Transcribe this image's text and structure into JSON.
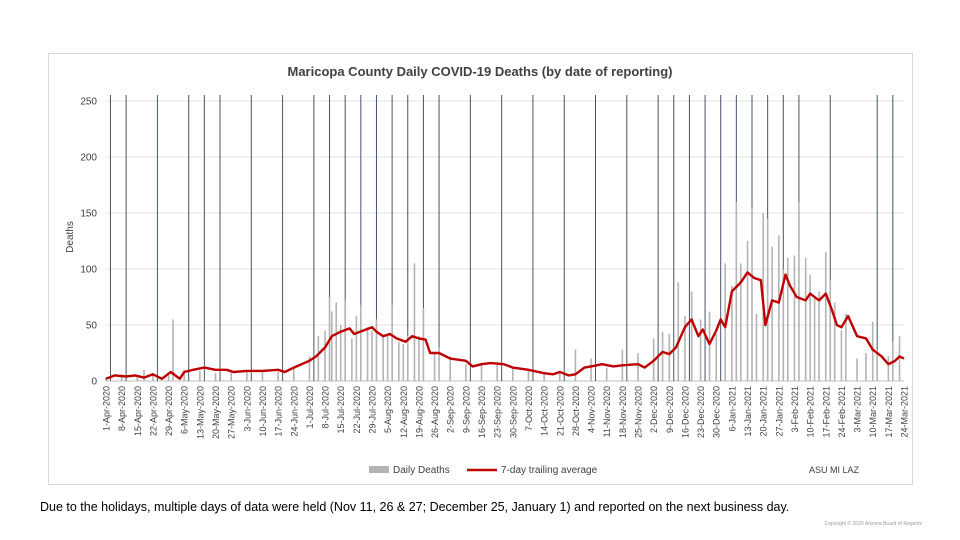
{
  "chart_data": {
    "type": "bar",
    "title": "Maricopa County Daily COVID-19 Deaths (by date of reporting)",
    "xlabel": "",
    "ylabel": "Deaths",
    "ylim": [
      0,
      250
    ],
    "yticks": [
      0,
      50,
      100,
      150,
      200,
      250
    ],
    "grid": true,
    "legend_position": "bottom",
    "x_start": "2020-04-01",
    "x_end": "2021-03-24",
    "x_ticks": [
      "1-Apr-2020",
      "8-Apr-2020",
      "15-Apr-2020",
      "22-Apr-2020",
      "29-Apr-2020",
      "6-May-2020",
      "13-May-2020",
      "20-May-2020",
      "27-May-2020",
      "3-Jun-2020",
      "10-Jun-2020",
      "17-Jun-2020",
      "24-Jun-2020",
      "1-Jul-2020",
      "8-Jul-2020",
      "15-Jul-2020",
      "22-Jul-2020",
      "29-Jul-2020",
      "5-Aug-2020",
      "12-Aug-2020",
      "19-Aug-2020",
      "26-Aug-2020",
      "2-Sep-2020",
      "9-Sep-2020",
      "16-Sep-2020",
      "23-Sep-2020",
      "30-Sep-2020",
      "7-Oct-2020",
      "14-Oct-2020",
      "21-Oct-2020",
      "28-Oct-2020",
      "4-Nov-2020",
      "11-Nov-2020",
      "18-Nov-2020",
      "25-Nov-2020",
      "2-Dec-2020",
      "9-Dec-2020",
      "16-Dec-2020",
      "23-Dec-2020",
      "30-Dec-2020",
      "6-Jan-2021",
      "13-Jan-2021",
      "20-Jan-2021",
      "27-Jan-2021",
      "3-Feb-2021",
      "10-Feb-2021",
      "17-Feb-2021",
      "24-Feb-2021",
      "3-Mar-2021",
      "10-Mar-2021",
      "17-Mar-2021",
      "24-Mar-2021"
    ],
    "reporting_dates": [
      "2020-04-03",
      "2020-04-10",
      "2020-04-24",
      "2020-05-08",
      "2020-05-15",
      "2020-05-22",
      "2020-06-05",
      "2020-06-19",
      "2020-07-03",
      "2020-07-10",
      "2020-07-17",
      "2020-07-24",
      "2020-07-31",
      "2020-08-07",
      "2020-08-14",
      "2020-08-21",
      "2020-08-28",
      "2020-09-11",
      "2020-09-25",
      "2020-10-09",
      "2020-10-23",
      "2020-11-06",
      "2020-11-20",
      "2020-12-04",
      "2020-12-11",
      "2020-12-18",
      "2020-12-25",
      "2021-01-01",
      "2021-01-08",
      "2021-01-15",
      "2021-01-22",
      "2021-01-29",
      "2021-02-05",
      "2021-02-19",
      "2021-03-12",
      "2021-03-19"
    ],
    "series": [
      {
        "name": "Daily Deaths",
        "type": "bar",
        "color": "#b4b4b4",
        "points": [
          [
            "2020-04-01",
            3
          ],
          [
            "2020-04-08",
            6
          ],
          [
            "2020-04-15",
            5
          ],
          [
            "2020-04-18",
            10
          ],
          [
            "2020-04-22",
            7
          ],
          [
            "2020-04-29",
            5
          ],
          [
            "2020-05-01",
            55
          ],
          [
            "2020-05-06",
            10
          ],
          [
            "2020-05-13",
            9
          ],
          [
            "2020-05-20",
            7
          ],
          [
            "2020-05-27",
            10
          ],
          [
            "2020-06-03",
            9
          ],
          [
            "2020-06-10",
            8
          ],
          [
            "2020-06-17",
            8
          ],
          [
            "2020-06-24",
            12
          ],
          [
            "2020-07-01",
            22
          ],
          [
            "2020-07-05",
            40
          ],
          [
            "2020-07-08",
            45
          ],
          [
            "2020-07-10",
            75
          ],
          [
            "2020-07-11",
            62
          ],
          [
            "2020-07-13",
            70
          ],
          [
            "2020-07-15",
            50
          ],
          [
            "2020-07-17",
            72
          ],
          [
            "2020-07-20",
            38
          ],
          [
            "2020-07-22",
            58
          ],
          [
            "2020-07-24",
            68
          ],
          [
            "2020-07-27",
            48
          ],
          [
            "2020-07-29",
            45
          ],
          [
            "2020-07-31",
            55
          ],
          [
            "2020-08-03",
            40
          ],
          [
            "2020-08-05",
            42
          ],
          [
            "2020-08-07",
            68
          ],
          [
            "2020-08-10",
            35
          ],
          [
            "2020-08-12",
            33
          ],
          [
            "2020-08-14",
            40
          ],
          [
            "2020-08-17",
            105
          ],
          [
            "2020-08-19",
            40
          ],
          [
            "2020-08-21",
            65
          ],
          [
            "2020-08-26",
            25
          ],
          [
            "2020-08-28",
            30
          ],
          [
            "2020-09-02",
            22
          ],
          [
            "2020-09-09",
            15
          ],
          [
            "2020-09-16",
            15
          ],
          [
            "2020-09-23",
            17
          ],
          [
            "2020-09-30",
            12
          ],
          [
            "2020-10-07",
            10
          ],
          [
            "2020-10-14",
            7
          ],
          [
            "2020-10-21",
            8
          ],
          [
            "2020-10-28",
            28
          ],
          [
            "2020-11-04",
            20
          ],
          [
            "2020-11-11",
            12
          ],
          [
            "2020-11-18",
            28
          ],
          [
            "2020-11-25",
            25
          ],
          [
            "2020-12-02",
            38
          ],
          [
            "2020-12-06",
            44
          ],
          [
            "2020-12-09",
            42
          ],
          [
            "2020-12-13",
            88
          ],
          [
            "2020-12-16",
            58
          ],
          [
            "2020-12-19",
            80
          ],
          [
            "2020-12-23",
            55
          ],
          [
            "2020-12-27",
            62
          ],
          [
            "2020-12-30",
            42
          ],
          [
            "2021-01-03",
            105
          ],
          [
            "2021-01-06",
            85
          ],
          [
            "2021-01-08",
            160
          ],
          [
            "2021-01-10",
            105
          ],
          [
            "2021-01-13",
            125
          ],
          [
            "2021-01-15",
            155
          ],
          [
            "2021-01-17",
            60
          ],
          [
            "2021-01-20",
            150
          ],
          [
            "2021-01-22",
            145
          ],
          [
            "2021-01-24",
            120
          ],
          [
            "2021-01-27",
            130
          ],
          [
            "2021-01-29",
            100
          ],
          [
            "2021-01-31",
            110
          ],
          [
            "2021-02-03",
            112
          ],
          [
            "2021-02-05",
            160
          ],
          [
            "2021-02-08",
            110
          ],
          [
            "2021-02-10",
            95
          ],
          [
            "2021-02-12",
            75
          ],
          [
            "2021-02-14",
            80
          ],
          [
            "2021-02-17",
            115
          ],
          [
            "2021-02-19",
            90
          ],
          [
            "2021-02-21",
            70
          ],
          [
            "2021-02-24",
            45
          ],
          [
            "2021-02-26",
            60
          ],
          [
            "2021-03-03",
            20
          ],
          [
            "2021-03-07",
            25
          ],
          [
            "2021-03-10",
            53
          ],
          [
            "2021-03-12",
            28
          ],
          [
            "2021-03-17",
            22
          ],
          [
            "2021-03-19",
            35
          ],
          [
            "2021-03-22",
            40
          ]
        ]
      },
      {
        "name": "7-day trailing average",
        "type": "line",
        "color": "#c00000",
        "points": [
          [
            "2020-04-01",
            2
          ],
          [
            "2020-04-05",
            5
          ],
          [
            "2020-04-10",
            4
          ],
          [
            "2020-04-14",
            5
          ],
          [
            "2020-04-18",
            3
          ],
          [
            "2020-04-22",
            6
          ],
          [
            "2020-04-26",
            2
          ],
          [
            "2020-04-30",
            8
          ],
          [
            "2020-05-04",
            2
          ],
          [
            "2020-05-06",
            8
          ],
          [
            "2020-05-10",
            10
          ],
          [
            "2020-05-15",
            12
          ],
          [
            "2020-05-20",
            10
          ],
          [
            "2020-05-25",
            10
          ],
          [
            "2020-05-28",
            8
          ],
          [
            "2020-06-03",
            9
          ],
          [
            "2020-06-10",
            9
          ],
          [
            "2020-06-17",
            10
          ],
          [
            "2020-06-20",
            8
          ],
          [
            "2020-06-24",
            12
          ],
          [
            "2020-07-01",
            18
          ],
          [
            "2020-07-04",
            22
          ],
          [
            "2020-07-08",
            30
          ],
          [
            "2020-07-11",
            40
          ],
          [
            "2020-07-15",
            44
          ],
          [
            "2020-07-19",
            47
          ],
          [
            "2020-07-21",
            42
          ],
          [
            "2020-07-25",
            45
          ],
          [
            "2020-07-29",
            48
          ],
          [
            "2020-07-31",
            44
          ],
          [
            "2020-08-03",
            40
          ],
          [
            "2020-08-06",
            42
          ],
          [
            "2020-08-09",
            38
          ],
          [
            "2020-08-13",
            35
          ],
          [
            "2020-08-16",
            40
          ],
          [
            "2020-08-19",
            38
          ],
          [
            "2020-08-22",
            37
          ],
          [
            "2020-08-24",
            25
          ],
          [
            "2020-08-28",
            25
          ],
          [
            "2020-09-02",
            20
          ],
          [
            "2020-09-09",
            18
          ],
          [
            "2020-09-12",
            13
          ],
          [
            "2020-09-16",
            15
          ],
          [
            "2020-09-20",
            16
          ],
          [
            "2020-09-26",
            15
          ],
          [
            "2020-09-30",
            12
          ],
          [
            "2020-10-07",
            10
          ],
          [
            "2020-10-14",
            7
          ],
          [
            "2020-10-18",
            6
          ],
          [
            "2020-10-21",
            8
          ],
          [
            "2020-10-25",
            5
          ],
          [
            "2020-10-28",
            6
          ],
          [
            "2020-11-01",
            12
          ],
          [
            "2020-11-04",
            13
          ],
          [
            "2020-11-09",
            15
          ],
          [
            "2020-11-14",
            13
          ],
          [
            "2020-11-18",
            14
          ],
          [
            "2020-11-25",
            15
          ],
          [
            "2020-11-28",
            12
          ],
          [
            "2020-12-02",
            18
          ],
          [
            "2020-12-06",
            26
          ],
          [
            "2020-12-09",
            24
          ],
          [
            "2020-12-12",
            30
          ],
          [
            "2020-12-16",
            48
          ],
          [
            "2020-12-19",
            55
          ],
          [
            "2020-12-22",
            40
          ],
          [
            "2020-12-24",
            46
          ],
          [
            "2020-12-27",
            33
          ],
          [
            "2020-12-30",
            45
          ],
          [
            "2021-01-01",
            55
          ],
          [
            "2021-01-03",
            48
          ],
          [
            "2021-01-06",
            80
          ],
          [
            "2021-01-10",
            88
          ],
          [
            "2021-01-13",
            97
          ],
          [
            "2021-01-16",
            92
          ],
          [
            "2021-01-19",
            90
          ],
          [
            "2021-01-21",
            50
          ],
          [
            "2021-01-24",
            72
          ],
          [
            "2021-01-27",
            70
          ],
          [
            "2021-01-30",
            95
          ],
          [
            "2021-02-01",
            85
          ],
          [
            "2021-02-04",
            75
          ],
          [
            "2021-02-08",
            72
          ],
          [
            "2021-02-10",
            78
          ],
          [
            "2021-02-14",
            72
          ],
          [
            "2021-02-17",
            78
          ],
          [
            "2021-02-20",
            62
          ],
          [
            "2021-02-22",
            50
          ],
          [
            "2021-02-24",
            48
          ],
          [
            "2021-02-27",
            58
          ],
          [
            "2021-03-03",
            40
          ],
          [
            "2021-03-07",
            38
          ],
          [
            "2021-03-10",
            28
          ],
          [
            "2021-03-14",
            22
          ],
          [
            "2021-03-17",
            15
          ],
          [
            "2021-03-20",
            18
          ],
          [
            "2021-03-22",
            22
          ],
          [
            "2021-03-24",
            20
          ]
        ]
      }
    ],
    "annotation": "ASU MI LAZ"
  },
  "caption": "Due to the holidays, multiple days of data were held (Nov 11, 26 & 27; December 25, January 1) and reported on the next business day.",
  "copyright": "Copyright © 2020 Arizona Board of Regents"
}
